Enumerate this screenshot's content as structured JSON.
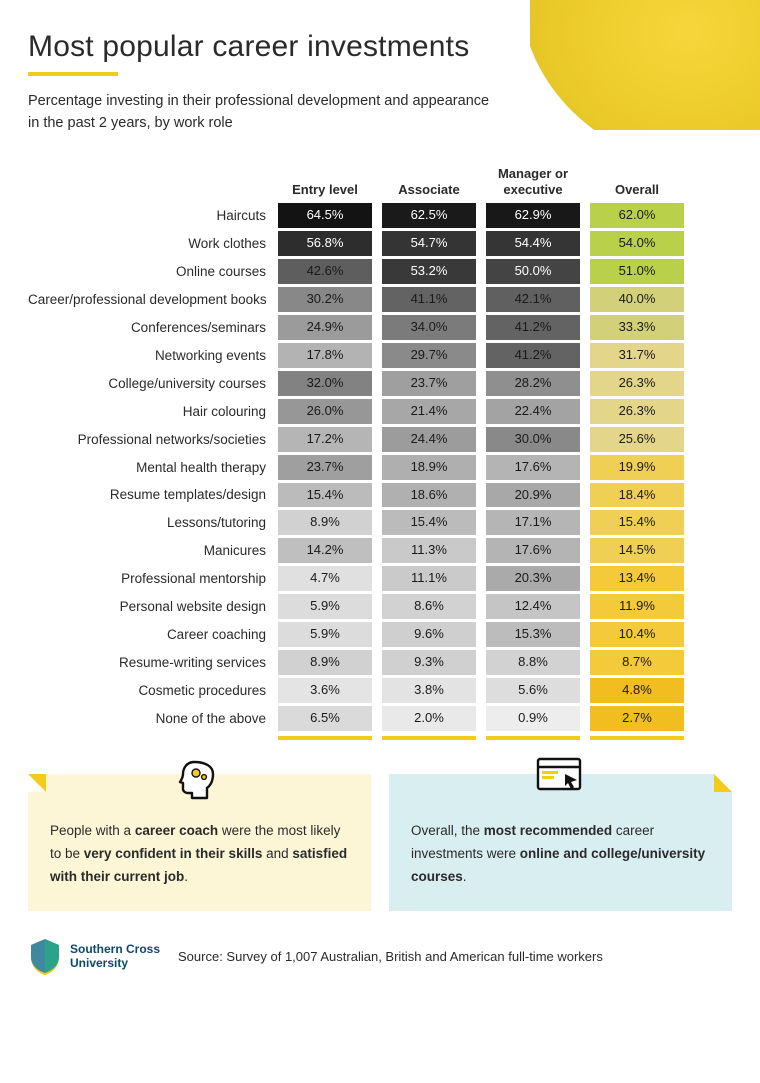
{
  "header": {
    "title": "Most popular career investments",
    "subtitle": "Percentage investing in their professional development and appearance in the past 2 years, by work role",
    "underline_color": "#f3cc1a",
    "title_fontsize": 30,
    "subtitle_fontsize": 14.5
  },
  "table": {
    "type": "table",
    "columns": [
      "Entry level",
      "Associate",
      "Manager or executive",
      "Overall"
    ],
    "column_foot_color": "#f3cc1a",
    "grey_scale": {
      "min_color": "#f0f0f0",
      "max_color": "#111111",
      "light_text_threshold": 48
    },
    "overall_scale": {
      "stops": [
        {
          "at": 62.0,
          "color": "#b9d04a"
        },
        {
          "at": 40.0,
          "color": "#d3d07a"
        },
        {
          "at": 26.3,
          "color": "#e3d58a"
        },
        {
          "at": 18.4,
          "color": "#f0cf55"
        },
        {
          "at": 10.4,
          "color": "#f4c93a"
        },
        {
          "at": 2.7,
          "color": "#f1bd1f"
        }
      ]
    },
    "rows": [
      {
        "label": "Haircuts",
        "values": [
          64.5,
          62.5,
          62.9
        ],
        "overall": 62.0
      },
      {
        "label": "Work clothes",
        "values": [
          56.8,
          54.7,
          54.4
        ],
        "overall": 54.0
      },
      {
        "label": "Online courses",
        "values": [
          42.6,
          53.2,
          50.0
        ],
        "overall": 51.0
      },
      {
        "label": "Career/professional development books",
        "values": [
          30.2,
          41.1,
          42.1
        ],
        "overall": 40.0
      },
      {
        "label": "Conferences/seminars",
        "values": [
          24.9,
          34.0,
          41.2
        ],
        "overall": 33.3
      },
      {
        "label": "Networking events",
        "values": [
          17.8,
          29.7,
          41.2
        ],
        "overall": 31.7
      },
      {
        "label": "College/university courses",
        "values": [
          32.0,
          23.7,
          28.2
        ],
        "overall": 26.3
      },
      {
        "label": "Hair colouring",
        "values": [
          26.0,
          21.4,
          22.4
        ],
        "overall": 26.3
      },
      {
        "label": "Professional networks/societies",
        "values": [
          17.2,
          24.4,
          30.0
        ],
        "overall": 25.6
      },
      {
        "label": "Mental health therapy",
        "values": [
          23.7,
          18.9,
          17.6
        ],
        "overall": 19.9
      },
      {
        "label": "Resume templates/design",
        "values": [
          15.4,
          18.6,
          20.9
        ],
        "overall": 18.4
      },
      {
        "label": "Lessons/tutoring",
        "values": [
          8.9,
          15.4,
          17.1
        ],
        "overall": 15.4
      },
      {
        "label": "Manicures",
        "values": [
          14.2,
          11.3,
          17.6
        ],
        "overall": 14.5
      },
      {
        "label": "Professional mentorship",
        "values": [
          4.7,
          11.1,
          20.3
        ],
        "overall": 13.4
      },
      {
        "label": "Personal website design",
        "values": [
          5.9,
          8.6,
          12.4
        ],
        "overall": 11.9
      },
      {
        "label": "Career coaching",
        "values": [
          5.9,
          9.6,
          15.3
        ],
        "overall": 10.4
      },
      {
        "label": "Resume-writing services",
        "values": [
          8.9,
          9.3,
          8.8
        ],
        "overall": 8.7
      },
      {
        "label": "Cosmetic procedures",
        "values": [
          3.6,
          3.8,
          5.6
        ],
        "overall": 4.8
      },
      {
        "label": "None of the above",
        "values": [
          6.5,
          2.0,
          0.9
        ],
        "overall": 2.7
      }
    ]
  },
  "callouts": {
    "left": {
      "bg_color": "#fdf6d6",
      "fold_color": "#f3cc1a",
      "icon": "head-gear-icon",
      "html": "People with a <b>career coach</b> were the most likely to be <b>very confident in their skills</b> and <b>satisfied with their current job</b>."
    },
    "right": {
      "bg_color": "#d9eef1",
      "fold_color": "#f3cc1a",
      "icon": "browser-cursor-icon",
      "html": "Overall, the <b>most recommended</b> career investments were <b>online</b> <b>and college/university courses</b>."
    }
  },
  "footer": {
    "org_name": "Southern Cross\nUniversity",
    "org_color": "#0a4a6a",
    "source": "Source: Survey of 1,007 Australian, British and American full-time workers"
  }
}
